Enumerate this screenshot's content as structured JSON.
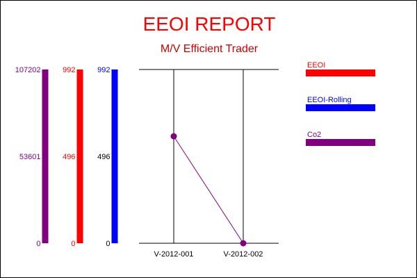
{
  "chart_data": {
    "type": "line",
    "title": "EEOI REPORT",
    "subtitle": "M/V Efficient Trader",
    "categories": [
      "V-2012-001",
      "V-2012-002"
    ],
    "axes": [
      {
        "series": "Co2",
        "color": "#800080",
        "label_color": "#800080",
        "ylim": [
          0,
          107202
        ],
        "ticks": [
          "107202",
          "53601",
          "0"
        ]
      },
      {
        "series": "EEOI",
        "color": "#ff0000",
        "label_color": "#ff0000",
        "ylim": [
          0,
          992
        ],
        "ticks": [
          "992",
          "496",
          "0"
        ]
      },
      {
        "series": "EEOI-Rolling",
        "color": "#0000ff",
        "label_color": "#0000ff",
        "ylim": [
          0,
          992
        ],
        "ticks": [
          "992",
          "496",
          "0"
        ]
      }
    ],
    "series": [
      {
        "name": "Co2",
        "color": "#800080",
        "axis": 0,
        "values": [
          66000,
          0
        ]
      }
    ],
    "legend": [
      {
        "name": "EEOI",
        "color": "#ff0000"
      },
      {
        "name": "EEOI-Rolling",
        "color": "#0000ff"
      },
      {
        "name": "Co2",
        "color": "#800080"
      }
    ],
    "legend_position": "right",
    "grid": false
  }
}
